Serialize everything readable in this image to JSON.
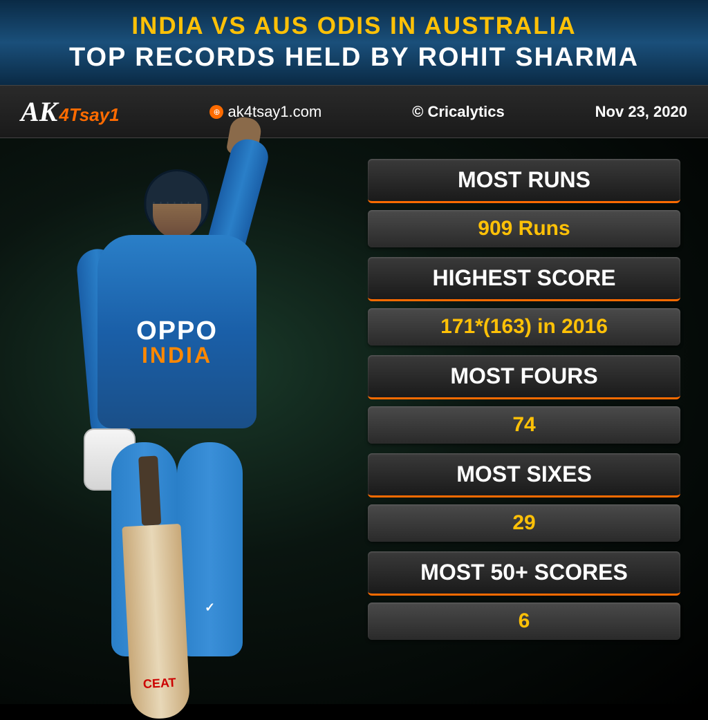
{
  "header": {
    "line1": "INDIA VS AUS ODIS IN AUSTRALIA",
    "line2": "TOP RECORDS HELD BY ROHIT SHARMA"
  },
  "info_bar": {
    "logo_ak": "AK",
    "logo_suffix": "4Tsay1",
    "website": "ak4tsay1.com",
    "copyright": "© Cricalytics",
    "date": "Nov 23, 2020"
  },
  "player": {
    "jersey_sponsor": "OPPO",
    "jersey_team": "INDIA",
    "bat_brand": "CEAT"
  },
  "stats": [
    {
      "label": "MOST RUNS",
      "value": "909 Runs"
    },
    {
      "label": "HIGHEST SCORE",
      "value": "171*(163) in 2016"
    },
    {
      "label": "MOST FOURS",
      "value": "74"
    },
    {
      "label": "MOST SIXES",
      "value": "29"
    },
    {
      "label": "MOST 50+ SCORES",
      "value": "6"
    }
  ],
  "colors": {
    "accent_yellow": "#ffc107",
    "accent_orange": "#ff6b00",
    "jersey_blue": "#2a7fc8",
    "header_gradient_dark": "#0a2a45",
    "header_gradient_light": "#1a4f7a",
    "stat_box_dark": "#1a1a1a",
    "stat_box_light": "#3a3a3a"
  }
}
